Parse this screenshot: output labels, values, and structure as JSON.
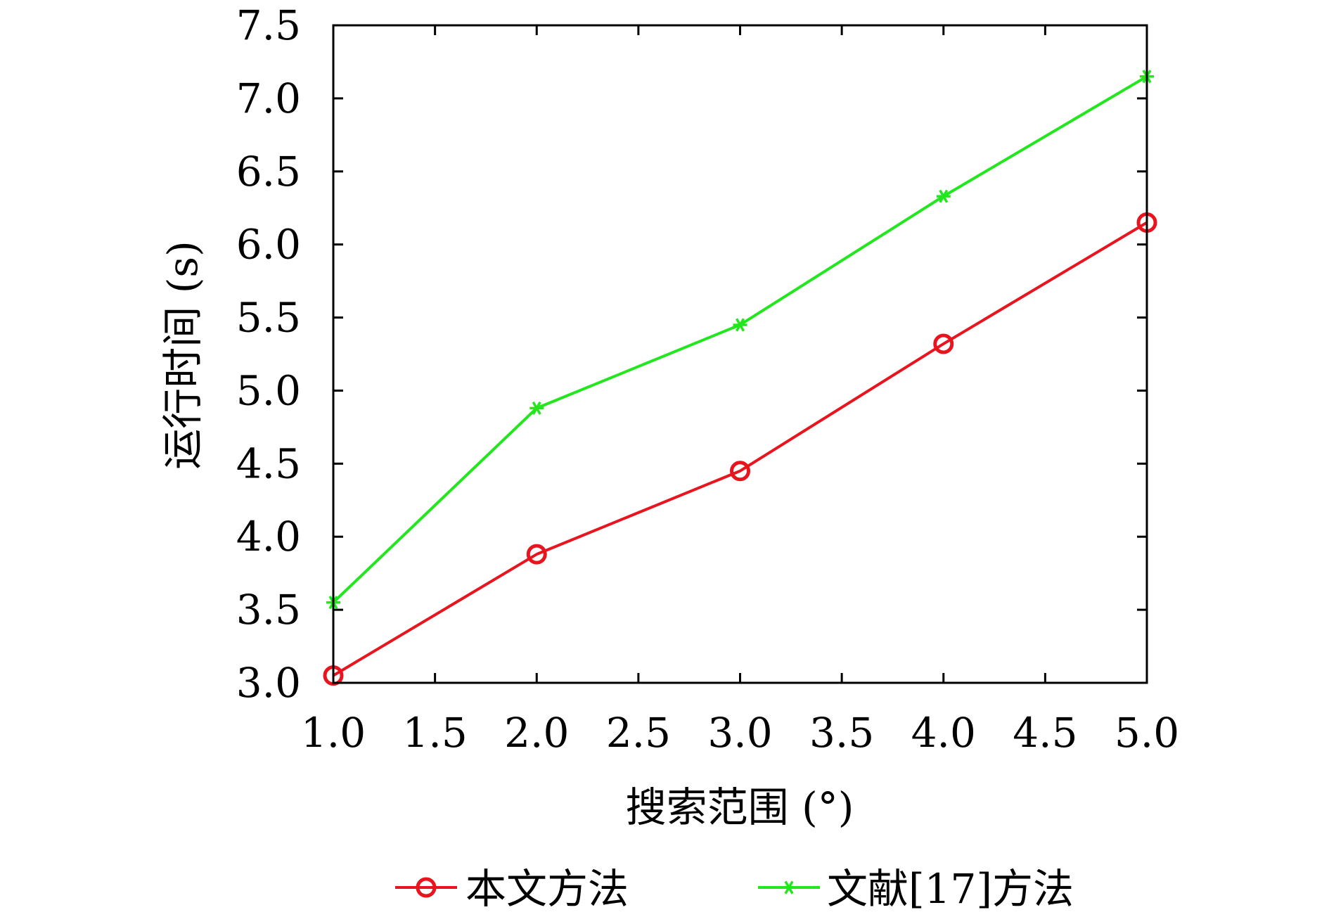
{
  "chart_data": {
    "type": "line",
    "title": "",
    "xlabel": "搜索范围 (°)",
    "ylabel": "运行时间 (s)",
    "xlim": [
      1.0,
      5.0
    ],
    "ylim": [
      3.0,
      7.5
    ],
    "x_ticks": [
      "1.0",
      "1.5",
      "2.0",
      "2.5",
      "3.0",
      "3.5",
      "4.0",
      "4.5",
      "5.0"
    ],
    "y_ticks": [
      "3.0",
      "3.5",
      "4.0",
      "4.5",
      "5.0",
      "5.5",
      "6.0",
      "6.5",
      "7.0",
      "7.5"
    ],
    "grid": false,
    "legend_position": "bottom",
    "series": [
      {
        "name": "本文方法",
        "color": "#e8141e",
        "marker": "circle",
        "x": [
          1.0,
          2.0,
          3.0,
          4.0,
          5.0
        ],
        "y": [
          3.05,
          3.88,
          4.45,
          5.32,
          6.15
        ]
      },
      {
        "name": "文献[17]方法",
        "color": "#22e61e",
        "marker": "asterisk",
        "x": [
          1.0,
          2.0,
          3.0,
          4.0,
          5.0
        ],
        "y": [
          3.55,
          4.88,
          5.45,
          6.33,
          7.15
        ]
      }
    ]
  }
}
